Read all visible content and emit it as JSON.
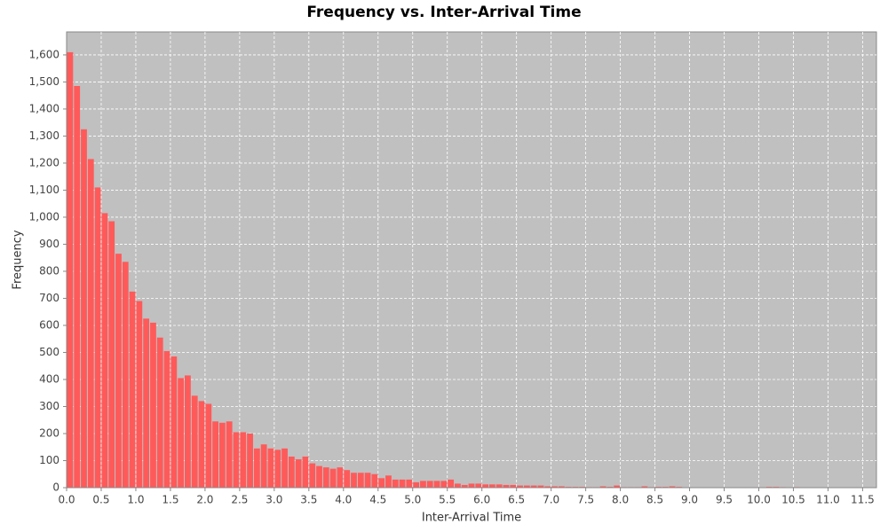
{
  "chart_data": {
    "type": "histogram",
    "title": "Frequency vs. Inter-Arrival Time",
    "x_label": "Inter-Arrival Time",
    "y_label": "Frequency",
    "color": "#ff5a5a",
    "grid": true,
    "bins": [
      0,
      0.1,
      0.2,
      0.3,
      0.4,
      0.5,
      0.6,
      0.7,
      0.8,
      0.9,
      1,
      1.1,
      1.2,
      1.3,
      1.4,
      1.5,
      1.6,
      1.7,
      1.8,
      1.9,
      2,
      2.1,
      2.2,
      2.3,
      2.4,
      2.5,
      2.6,
      2.7,
      2.8,
      2.9,
      3,
      3.1,
      3.2,
      3.3,
      3.4,
      3.5,
      3.6,
      3.7,
      3.8,
      3.9,
      4,
      4.1,
      4.2,
      4.3,
      4.4,
      4.5,
      4.6,
      4.7,
      4.8,
      4.9,
      5,
      5.1,
      5.2,
      5.3,
      5.4,
      5.5,
      5.6,
      5.7,
      5.8,
      5.9,
      6,
      6.1,
      6.2,
      6.3,
      6.4,
      6.5,
      6.6,
      6.7,
      6.8,
      6.9,
      7,
      7.1,
      7.2,
      7.3,
      7.4,
      7.5,
      7.6,
      7.7,
      7.8,
      7.9,
      8,
      8.1,
      8.2,
      8.3,
      8.4,
      8.5,
      8.6,
      8.7,
      8.8,
      8.9,
      9,
      9.1,
      9.2,
      9.3,
      9.4,
      9.5,
      9.6,
      9.7,
      9.8,
      9.9,
      10,
      10.1,
      10.2,
      10.3,
      10.4,
      10.5,
      10.6,
      10.7,
      10.8,
      10.9,
      11,
      11.1,
      11.2
    ],
    "values": [
      1610,
      1485,
      1325,
      1215,
      1110,
      1015,
      985,
      865,
      835,
      725,
      690,
      625,
      610,
      555,
      505,
      485,
      405,
      415,
      340,
      320,
      310,
      245,
      240,
      245,
      205,
      205,
      200,
      145,
      160,
      145,
      140,
      145,
      115,
      105,
      115,
      90,
      80,
      75,
      70,
      75,
      65,
      55,
      55,
      55,
      50,
      35,
      45,
      30,
      30,
      30,
      20,
      25,
      25,
      25,
      25,
      30,
      15,
      10,
      15,
      15,
      12,
      12,
      12,
      10,
      10,
      8,
      8,
      8,
      8,
      5,
      5,
      5,
      3,
      3,
      3,
      2,
      2,
      5,
      3,
      8,
      2,
      2,
      2,
      5,
      2,
      3,
      3,
      5,
      3,
      0,
      1,
      1,
      1,
      1,
      0,
      1,
      0,
      0,
      1,
      0,
      0,
      3,
      3,
      2,
      1,
      2,
      1,
      1,
      1,
      1,
      0,
      0
    ],
    "xlim": [
      0,
      11.7
    ],
    "ylim": [
      0,
      1685
    ],
    "xticks": [
      {
        "value": 0,
        "label": "0.0"
      },
      0.5,
      {
        "value": 1,
        "label": "1.0"
      },
      1.5,
      {
        "value": 2,
        "label": "2.0"
      },
      2.5,
      {
        "value": 3,
        "label": "3.0"
      },
      3.5,
      {
        "value": 4,
        "label": "4.0"
      },
      4.5,
      {
        "value": 5,
        "label": "5.0"
      },
      5.5,
      {
        "value": 6,
        "label": "6.0"
      },
      6.5,
      {
        "value": 7,
        "label": "7.0"
      },
      7.5,
      {
        "value": 8,
        "label": "8.0"
      },
      8.5,
      {
        "value": 9,
        "label": "9.0"
      },
      9.5,
      {
        "value": 10,
        "label": "10.0"
      },
      10.5,
      {
        "value": 11,
        "label": "11.0"
      },
      11.5
    ],
    "yticks": [
      0,
      100,
      200,
      300,
      400,
      500,
      600,
      700,
      800,
      900,
      {
        "value": 1000,
        "label": "1,000"
      },
      {
        "value": 1100,
        "label": "1,100"
      },
      {
        "value": 1200,
        "label": "1,200"
      },
      {
        "value": 1300,
        "label": "1,300"
      },
      {
        "value": 1400,
        "label": "1,400"
      },
      {
        "value": 1500,
        "label": "1,500"
      },
      {
        "value": 1600,
        "label": "1,600"
      }
    ]
  }
}
